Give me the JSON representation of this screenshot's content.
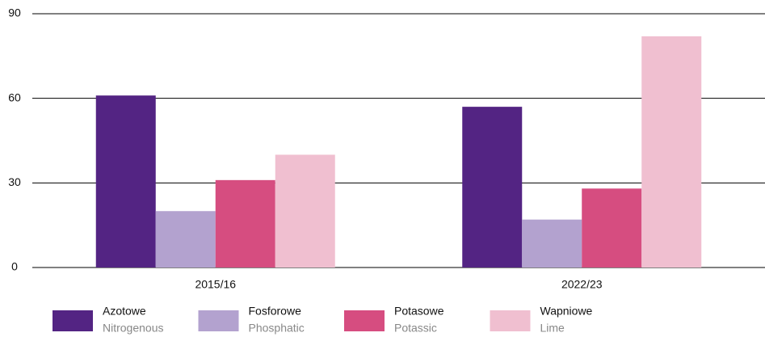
{
  "chart_data": {
    "type": "bar",
    "categories": [
      "2015/16",
      "2022/23"
    ],
    "series": [
      {
        "name": "Azotowe",
        "name_english": "Nitrogenous",
        "color": "#532483",
        "values": [
          61,
          57
        ]
      },
      {
        "name": "Fosforowe",
        "name_english": "Phosphatic",
        "color": "#b3a2cf",
        "values": [
          20,
          17
        ]
      },
      {
        "name": "Potasowe",
        "name_english": "Potassic",
        "color": "#d64d80",
        "values": [
          31,
          28
        ]
      },
      {
        "name": "Wapniowe",
        "name_english": "Lime",
        "color": "#f0bfd0",
        "values": [
          40,
          82
        ]
      }
    ],
    "ylim": [
      0,
      90
    ],
    "yticks": [
      0,
      30,
      60,
      90
    ],
    "grid": true,
    "legend": "bottom"
  }
}
